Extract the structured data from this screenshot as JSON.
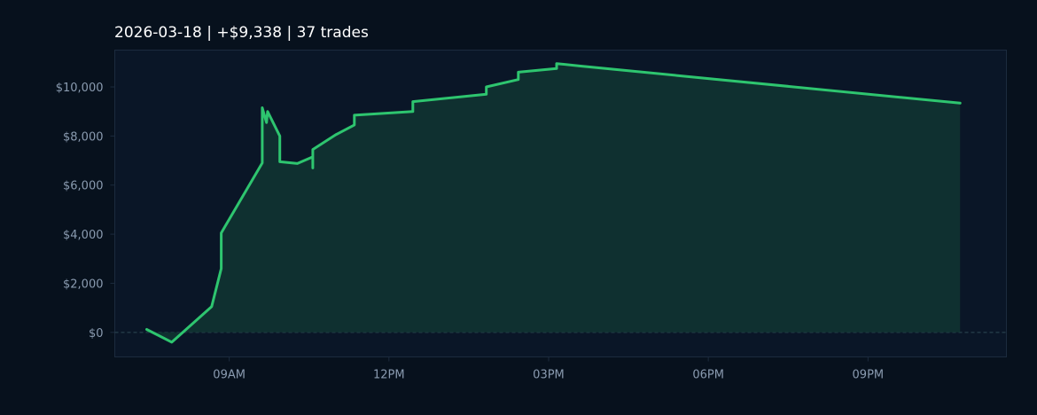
{
  "colors": {
    "page_background": "#07111d",
    "plot_background": "#0a1627",
    "plot_border": "#1c2b3e",
    "line": "#2ec56f",
    "area_fill": "#0f3030",
    "zero_line": "#2e4a55",
    "tick_text": "#8a9bb0",
    "title_text": "#ffffff"
  },
  "chart_data": {
    "type": "area",
    "title": "2026-03-18  |  +$9,338  |  37 trades",
    "xlabel": "",
    "ylabel": "",
    "x_unit": "hours since 00:00 on 2026-03-18",
    "xlim": [
      6.85,
      23.6
    ],
    "ylim": [
      -1000,
      11500
    ],
    "x_ticks": [
      {
        "value": 9,
        "label": "09AM"
      },
      {
        "value": 12,
        "label": "12PM"
      },
      {
        "value": 15,
        "label": "03PM"
      },
      {
        "value": 18,
        "label": "06PM"
      },
      {
        "value": 21,
        "label": "09PM"
      }
    ],
    "y_ticks": [
      {
        "value": 0,
        "label": "$0"
      },
      {
        "value": 2000,
        "label": "$2,000"
      },
      {
        "value": 4000,
        "label": "$4,000"
      },
      {
        "value": 6000,
        "label": "$6,000"
      },
      {
        "value": 8000,
        "label": "$8,000"
      },
      {
        "value": 10000,
        "label": "$10,000"
      }
    ],
    "zero_line": true,
    "grid": false,
    "legend": "none",
    "series": [
      {
        "points": [
          [
            7.45,
            120
          ],
          [
            7.92,
            -400
          ],
          [
            8.67,
            1050
          ],
          [
            8.85,
            2600
          ],
          [
            8.85,
            4050
          ],
          [
            9.62,
            6900
          ],
          [
            9.62,
            9150
          ],
          [
            9.7,
            8550
          ],
          [
            9.72,
            9000
          ],
          [
            9.95,
            8000
          ],
          [
            9.95,
            6950
          ],
          [
            10.28,
            6880
          ],
          [
            10.57,
            7150
          ],
          [
            10.57,
            6700
          ],
          [
            10.57,
            7450
          ],
          [
            11.0,
            8050
          ],
          [
            11.35,
            8450
          ],
          [
            11.35,
            8850
          ],
          [
            12.45,
            9000
          ],
          [
            12.45,
            9400
          ],
          [
            13.83,
            9700
          ],
          [
            13.83,
            10000
          ],
          [
            14.43,
            10300
          ],
          [
            14.43,
            10600
          ],
          [
            14.67,
            10650
          ],
          [
            15.15,
            10750
          ],
          [
            15.15,
            10950
          ],
          [
            15.6,
            10850
          ],
          [
            22.73,
            9338
          ]
        ]
      }
    ]
  }
}
